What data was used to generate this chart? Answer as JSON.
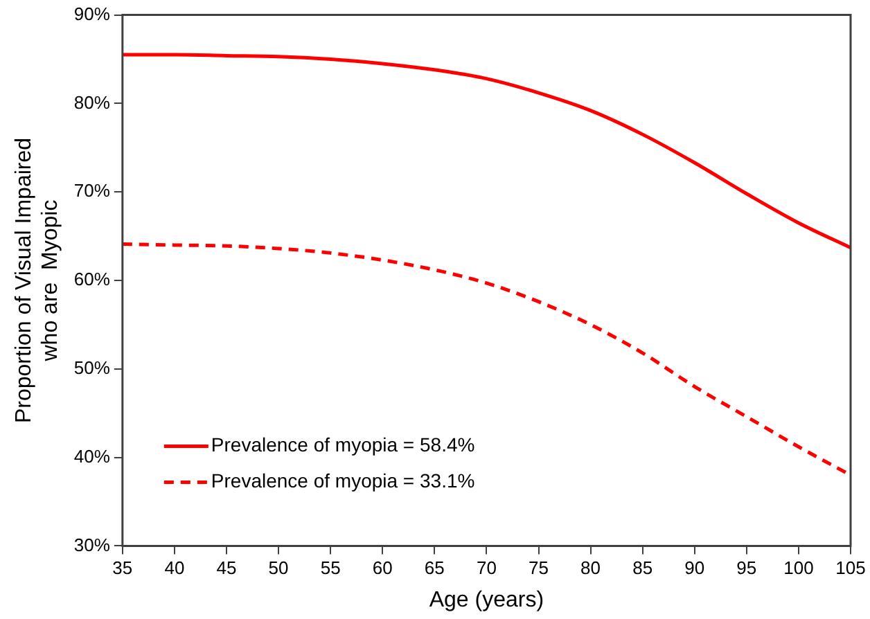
{
  "chart_data": {
    "type": "line",
    "xlabel": "Age (years)",
    "ylabel": "Proportion of Visual Impaired\nwho are  Myopic",
    "x": [
      35,
      40,
      45,
      50,
      55,
      60,
      65,
      70,
      75,
      80,
      85,
      90,
      95,
      100,
      105
    ],
    "series": [
      {
        "name": "Prevalence of myopia = 58.4%",
        "color": "#ff0000",
        "line_style": "solid",
        "values": [
          85.5,
          85.5,
          85.4,
          85.3,
          85.0,
          84.5,
          83.8,
          82.8,
          81.2,
          79.2,
          76.5,
          73.3,
          69.8,
          66.5,
          63.7
        ]
      },
      {
        "name": "Prevalence of myopia = 33.1%",
        "color": "#ff0000",
        "line_style": "dashed",
        "values": [
          64.1,
          64.0,
          63.9,
          63.6,
          63.1,
          62.3,
          61.2,
          59.7,
          57.6,
          55.0,
          51.8,
          48.0,
          44.6,
          41.2,
          38.0
        ]
      }
    ],
    "xlim": [
      35,
      105
    ],
    "xticks": [
      35,
      40,
      45,
      50,
      55,
      60,
      65,
      70,
      75,
      80,
      85,
      90,
      95,
      100,
      105
    ],
    "ylim": [
      30,
      90
    ],
    "yticks": [
      {
        "value": 30,
        "label": "30%"
      },
      {
        "value": 40,
        "label": "40%"
      },
      {
        "value": 50,
        "label": "50%"
      },
      {
        "value": 60,
        "label": "60%"
      },
      {
        "value": 70,
        "label": "70%"
      },
      {
        "value": 80,
        "label": "80%"
      },
      {
        "value": 90,
        "label": "90%"
      }
    ],
    "grid": false,
    "marker": "none",
    "legend": "bottom left"
  }
}
